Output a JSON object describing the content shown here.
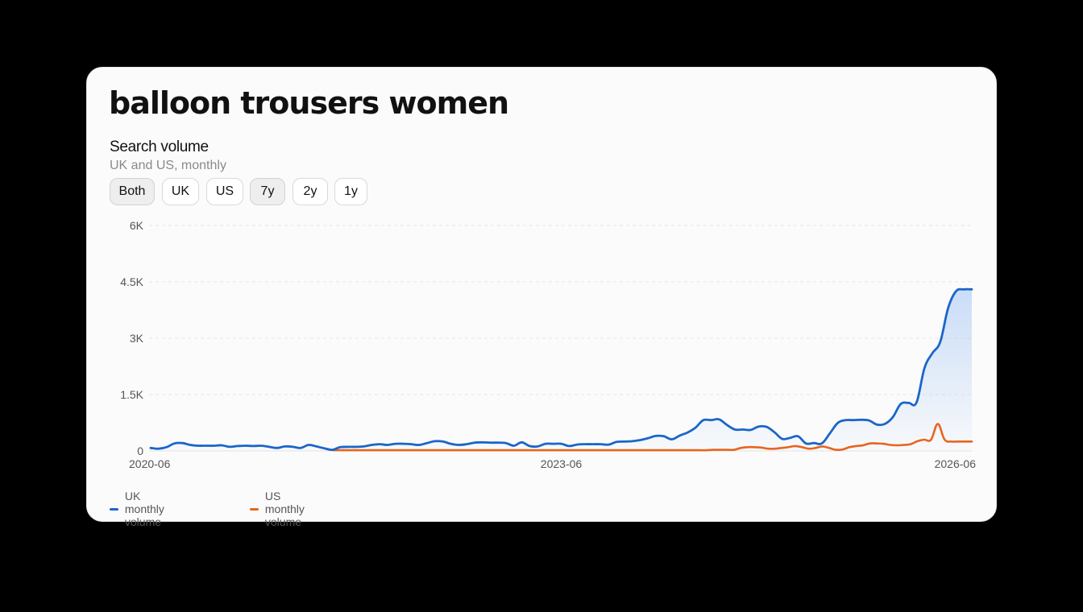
{
  "header": {
    "title": "balloon trousers women",
    "subtitle": "Search volume",
    "caption": "UK and US, monthly"
  },
  "filters": {
    "region": [
      {
        "label": "Both",
        "active": true
      },
      {
        "label": "UK",
        "active": false
      },
      {
        "label": "US",
        "active": false
      }
    ],
    "range": [
      {
        "label": "7y",
        "active": true
      },
      {
        "label": "2y",
        "active": false
      },
      {
        "label": "1y",
        "active": false
      }
    ]
  },
  "colors": {
    "uk": "#1a66c9",
    "us": "#e8641e",
    "uk_fill": "#a9c8f5"
  },
  "chart_data": {
    "type": "line",
    "x_ticks": [
      "2020-06",
      "2023-06",
      "2026-06"
    ],
    "y_ticks": [
      "0",
      "1.5K",
      "3K",
      "4.5K",
      "6K"
    ],
    "ylim": [
      0,
      6000
    ],
    "x_start": "2020-06",
    "x_end": "2026-06",
    "grid": "horizontal dashed",
    "legend_position": "bottom-left",
    "series": [
      {
        "name": "UK monthly volume",
        "color": "#1a66c9",
        "area": true,
        "values": [
          80,
          60,
          100,
          200,
          210,
          160,
          140,
          140,
          140,
          150,
          110,
          130,
          140,
          130,
          140,
          110,
          80,
          120,
          110,
          80,
          160,
          120,
          70,
          30,
          100,
          110,
          110,
          120,
          160,
          180,
          160,
          190,
          190,
          180,
          160,
          210,
          260,
          250,
          190,
          160,
          180,
          220,
          230,
          220,
          220,
          210,
          140,
          230,
          130,
          120,
          190,
          190,
          190,
          130,
          170,
          180,
          180,
          180,
          170,
          240,
          250,
          260,
          290,
          340,
          400,
          390,
          310,
          410,
          490,
          620,
          820,
          820,
          840,
          690,
          570,
          570,
          560,
          650,
          640,
          500,
          320,
          350,
          390,
          200,
          210,
          200,
          460,
          740,
          820,
          820,
          830,
          810,
          700,
          720,
          900,
          1250,
          1280,
          1290,
          2200,
          2600,
          2900,
          3800,
          4250,
          4300,
          4300
        ]
      },
      {
        "name": "US monthly volume",
        "color": "#e8641e",
        "area": false,
        "start": "2021-10",
        "values": [
          20,
          20,
          20,
          20,
          20,
          20,
          20,
          20,
          20,
          20,
          20,
          20,
          20,
          20,
          20,
          20,
          20,
          20,
          20,
          20,
          20,
          20,
          20,
          20,
          20,
          20,
          20,
          20,
          20,
          20,
          20,
          20,
          20,
          20,
          20,
          20,
          20,
          20,
          20,
          20,
          20,
          20,
          20,
          20,
          20,
          20,
          20,
          20,
          20,
          20,
          20,
          20,
          20,
          20,
          20,
          20,
          30,
          30,
          30,
          30,
          80,
          100,
          100,
          90,
          60,
          60,
          80,
          100,
          130,
          100,
          60,
          80,
          120,
          80,
          30,
          40,
          100,
          130,
          150,
          200,
          200,
          190,
          160,
          150,
          160,
          180,
          260,
          300,
          300,
          720,
          300,
          250,
          250,
          250,
          250
        ]
      }
    ]
  }
}
